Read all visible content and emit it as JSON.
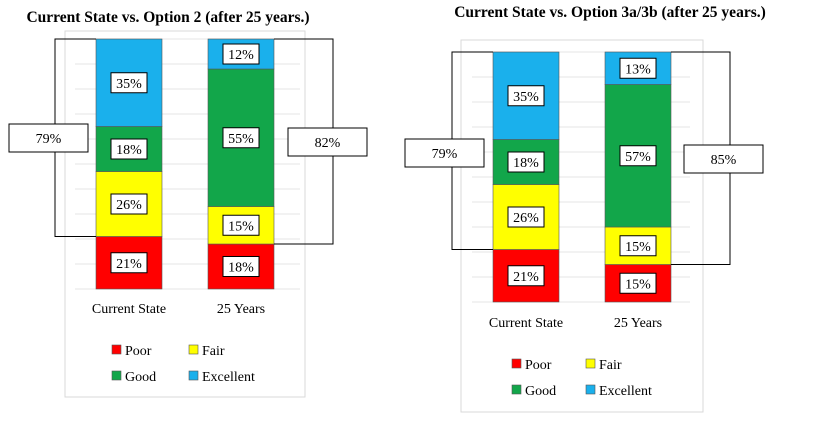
{
  "chart_data": [
    {
      "type": "bar",
      "stacked": true,
      "title": "Current State vs. Option 2 (after 25 years.)",
      "categories": [
        "Current State",
        "25 Years"
      ],
      "ylim": [
        0,
        100
      ],
      "grid": true,
      "legend_placement": "bottom",
      "series": [
        {
          "name": "Poor",
          "values": [
            21,
            18
          ],
          "labels": [
            "21%",
            "18%"
          ],
          "color": "#ff0000"
        },
        {
          "name": "Fair",
          "values": [
            26,
            15
          ],
          "labels": [
            "26%",
            "15%"
          ],
          "color": "#ffff00"
        },
        {
          "name": "Good",
          "values": [
            18,
            55
          ],
          "labels": [
            "18%",
            "55%"
          ],
          "color": "#12a64a"
        },
        {
          "name": "Excellent",
          "values": [
            35,
            12
          ],
          "labels": [
            "35%",
            "12%"
          ],
          "color": "#1ab0ec"
        }
      ],
      "annotations": [
        {
          "text": "79%",
          "category": "Current State",
          "covers": [
            "Fair",
            "Good",
            "Excellent"
          ]
        },
        {
          "text": "82%",
          "category": "25 Years",
          "covers": [
            "Fair",
            "Good",
            "Excellent"
          ]
        }
      ]
    },
    {
      "type": "bar",
      "stacked": true,
      "title": "Current State vs. Option 3a/3b (after 25 years.)",
      "categories": [
        "Current State",
        "25 Years"
      ],
      "ylim": [
        0,
        100
      ],
      "grid": true,
      "legend_placement": "bottom",
      "series": [
        {
          "name": "Poor",
          "values": [
            21,
            15
          ],
          "labels": [
            "21%",
            "15%"
          ],
          "color": "#ff0000"
        },
        {
          "name": "Fair",
          "values": [
            26,
            15
          ],
          "labels": [
            "26%",
            "15%"
          ],
          "color": "#ffff00"
        },
        {
          "name": "Good",
          "values": [
            18,
            57
          ],
          "labels": [
            "18%",
            "57%"
          ],
          "color": "#12a64a"
        },
        {
          "name": "Excellent",
          "values": [
            35,
            13
          ],
          "labels": [
            "35%",
            "13%"
          ],
          "color": "#1ab0ec"
        }
      ],
      "annotations": [
        {
          "text": "79%",
          "category": "Current State",
          "covers": [
            "Fair",
            "Good",
            "Excellent"
          ]
        },
        {
          "text": "85%",
          "category": "25 Years",
          "covers": [
            "Fair",
            "Good",
            "Excellent"
          ]
        }
      ]
    }
  ]
}
